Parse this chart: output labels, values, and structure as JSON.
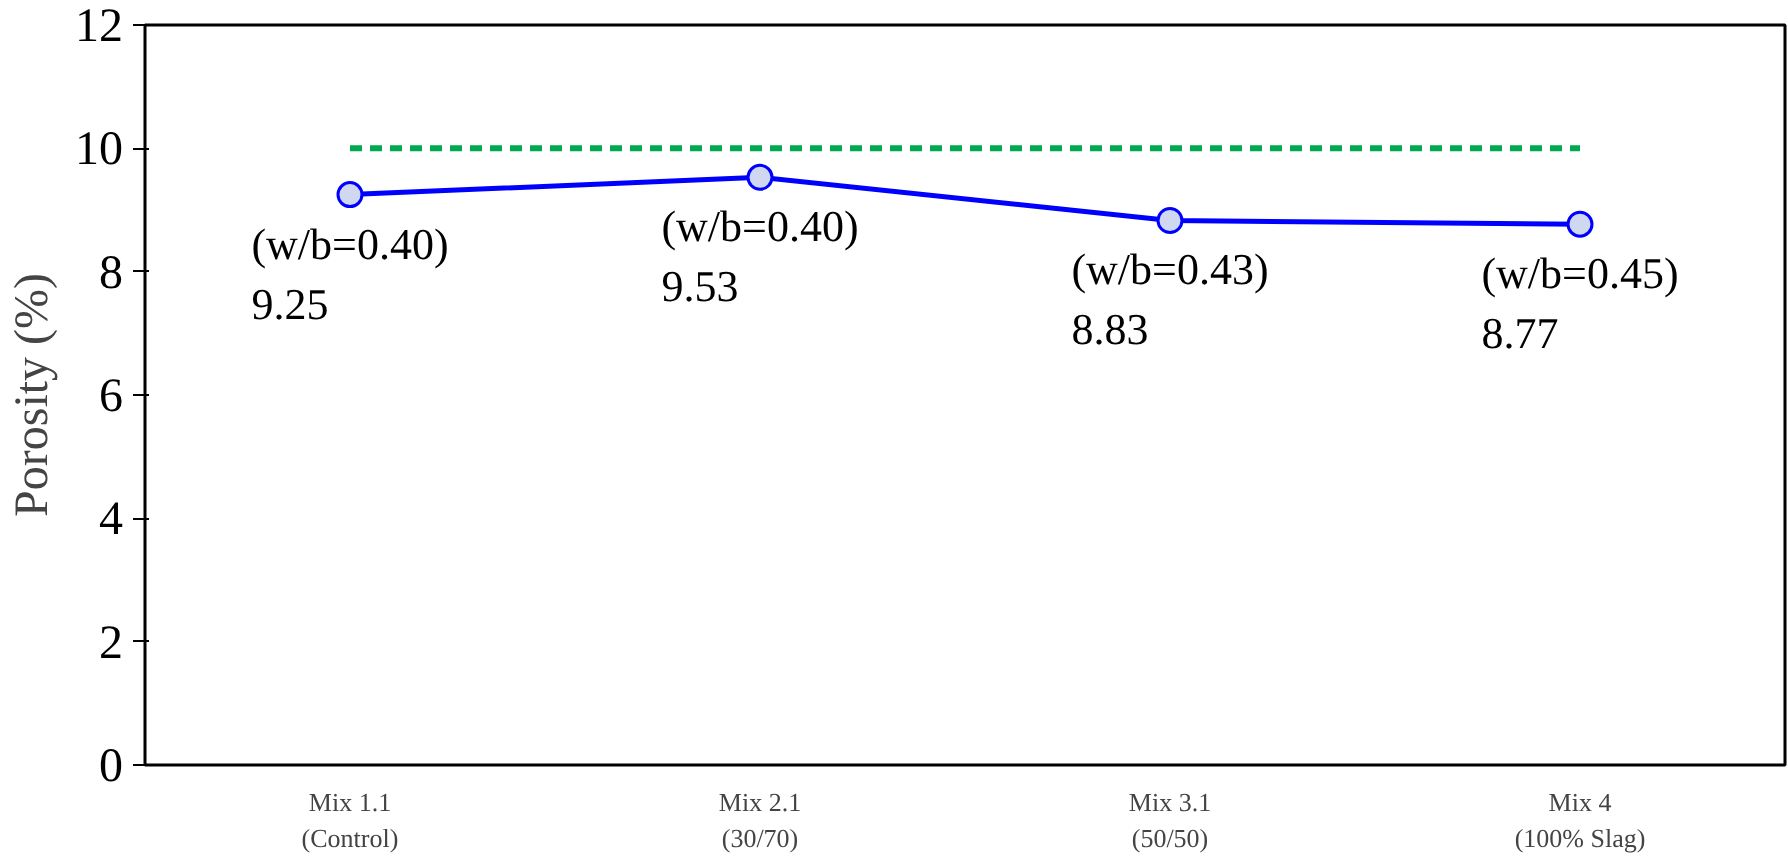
{
  "chart_data": {
    "type": "line",
    "ylabel": "Porosity (%)",
    "categories": [
      "Mix 1.1\n(Control)",
      "Mix 2.1\n(30/70)",
      "Mix 3.1\n(50/50)",
      "Mix 4\n(100% Slag)"
    ],
    "series": [
      {
        "color": "#0000ff",
        "values": [
          9.25,
          9.53,
          8.83,
          8.77
        ],
        "marker": "circle",
        "line_style": "solid",
        "value_labels": [
          "(w/b=0.40)\n9.25",
          "(w/b=0.40)\n9.53",
          "(w/b=0.43)\n8.83",
          "(w/b=0.45)\n8.77"
        ]
      },
      {
        "color": "#00a84f",
        "values": [
          10,
          10,
          10,
          10
        ],
        "marker": "none",
        "line_style": "dashed"
      }
    ],
    "ylim": [
      0,
      12
    ],
    "yticks": [
      0,
      2,
      4,
      6,
      8,
      10,
      12
    ],
    "grid": false
  }
}
